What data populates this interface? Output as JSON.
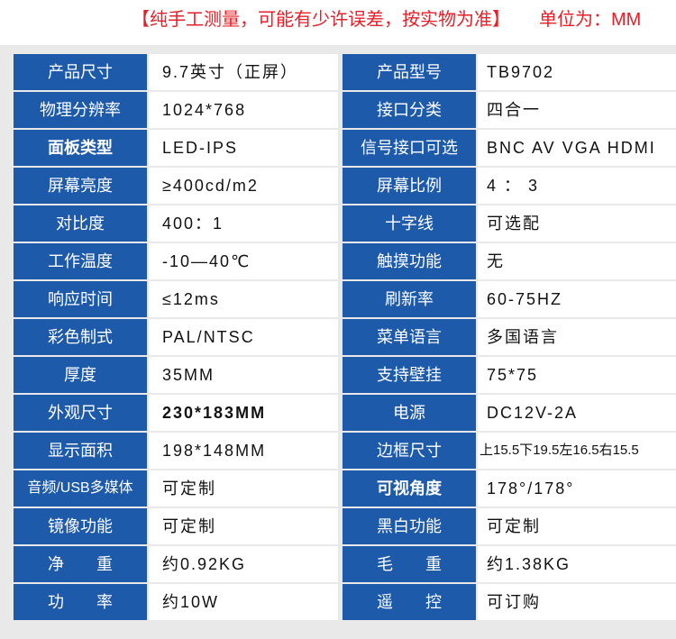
{
  "header": {
    "notice": "【纯手工测量，可能有少许误差，按实物为准】",
    "unit": "单位为：MM"
  },
  "colors": {
    "label_background": "#1e5aaa",
    "label_text": "#ffffff",
    "notice_red": "#e5202a"
  },
  "specs": [
    {
      "label1": "产品尺寸",
      "value1": "9.7英寸（正屏）",
      "label2": "产品型号",
      "value2": "TB9702"
    },
    {
      "label1": "物理分辨率",
      "value1": "1024*768",
      "label2": "接口分类",
      "value2": "四合一"
    },
    {
      "label1": "面板类型",
      "value1": "LED-IPS",
      "label2": "信号接口可选",
      "value2": "BNC AV VGA HDMI"
    },
    {
      "label1": "屏幕亮度",
      "value1": "≥400cd/m2",
      "label2": "屏幕比例",
      "value2": "4 ： 3"
    },
    {
      "label1": "对比度",
      "value1": "400：1",
      "label2": "十字线",
      "value2": "可选配"
    },
    {
      "label1": "工作温度",
      "value1": "-10—40℃",
      "label2": "触摸功能",
      "value2": "无"
    },
    {
      "label1": "响应时间",
      "value1": "≤12ms",
      "label2": "刷新率",
      "value2": "60-75HZ"
    },
    {
      "label1": "彩色制式",
      "value1": "PAL/NTSC",
      "label2": "菜单语言",
      "value2": "多国语言"
    },
    {
      "label1": "厚度",
      "value1": "35MM",
      "label2": "支持壁挂",
      "value2": "75*75"
    },
    {
      "label1": "外观尺寸",
      "value1": "230*183MM",
      "label2": "电源",
      "value2": "DC12V-2A"
    },
    {
      "label1": "显示面积",
      "value1": "198*148MM",
      "label2": "边框尺寸",
      "value2": "上15.5下19.5左16.5右15.5"
    },
    {
      "label1": "音频/USB多媒体",
      "value1": "可定制",
      "label2": "可视角度",
      "value2": "178°/178°"
    },
    {
      "label1": "镜像功能",
      "value1": "可定制",
      "label2": "黑白功能",
      "value2": "可定制"
    },
    {
      "label1": "净　　重",
      "value1": "约0.92KG",
      "label2": "毛　　重",
      "value2": "约1.38KG"
    },
    {
      "label1": "功　　率",
      "value1": "约10W",
      "label2": "遥　　控",
      "value2": "可订购"
    }
  ]
}
